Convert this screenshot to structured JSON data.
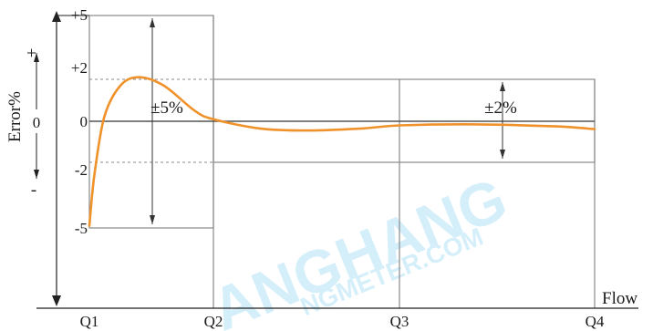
{
  "chart_data": {
    "type": "line",
    "ylabel": "Error%",
    "xlabel": "Flow",
    "y_ticks": [
      "+5",
      "+2",
      "0",
      "-2",
      "-5"
    ],
    "y_sign_plus": "+",
    "y_sign_minus": "-",
    "y_axis_zero": "0",
    "x_ticks": [
      "Q1",
      "Q2",
      "Q3",
      "Q4"
    ],
    "band_low": "±5%",
    "band_high": "±2%",
    "ylim": [
      -5,
      5
    ],
    "curve_color": "#f0922b",
    "series": [
      {
        "values": [
          {
            "x": 0.0,
            "y": -4.9
          },
          {
            "x": 0.04,
            "y": -2.6
          },
          {
            "x": 0.12,
            "y": 0.2
          },
          {
            "x": 0.25,
            "y": 1.7
          },
          {
            "x": 0.4,
            "y": 2.1
          },
          {
            "x": 0.6,
            "y": 1.7
          },
          {
            "x": 0.85,
            "y": 0.5
          },
          {
            "x": 1.0,
            "y": 0.1
          },
          {
            "x": 1.25,
            "y": -0.35
          },
          {
            "x": 1.5,
            "y": -0.45
          },
          {
            "x": 1.8,
            "y": -0.35
          },
          {
            "x": 2.0,
            "y": -0.2
          },
          {
            "x": 2.4,
            "y": -0.15
          },
          {
            "x": 2.8,
            "y": -0.25
          },
          {
            "x": 3.0,
            "y": -0.38
          }
        ]
      }
    ]
  },
  "watermark": {
    "line1": "ANGHANG",
    "line2": "NGMETER.COM"
  }
}
